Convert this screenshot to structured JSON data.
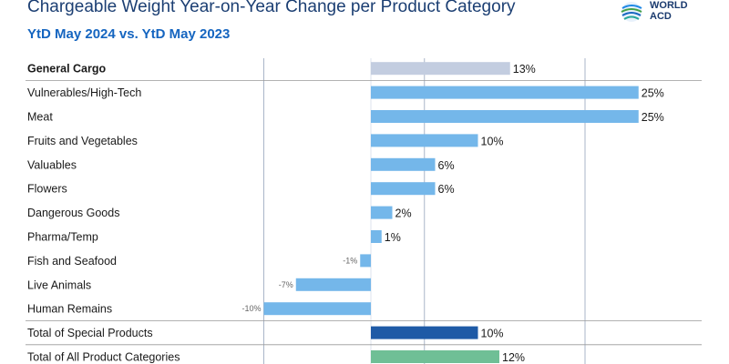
{
  "header": {
    "title": "Chargeable Weight Year-on-Year Change per Product Category",
    "subtitle": "YtD May 2024 vs. YtD May 2023"
  },
  "logo": {
    "line1": "WORLD",
    "line2": "ACD"
  },
  "colors": {
    "general": "#c3cde0",
    "special": "#74b7ea",
    "total_special": "#1e5aa6",
    "total_all": "#6fbf96",
    "grid": "#aab6c8",
    "separator": "#999999"
  },
  "chart_data": {
    "type": "bar",
    "orientation": "horizontal",
    "title": "Chargeable Weight Year-on-Year Change per Product Category",
    "subtitle": "YtD May 2024 vs. YtD May 2023",
    "unit": "%",
    "xlim": [
      -15,
      25
    ],
    "categories": [
      "General Cargo",
      "Vulnerables/High-Tech",
      "Meat",
      "Fruits and Vegetables",
      "Valuables",
      "Flowers",
      "Dangerous Goods",
      "Pharma/Temp",
      "Fish and Seafood",
      "Live Animals",
      "Human Remains",
      "Total of Special Products",
      "Total of All Product Categories"
    ],
    "values": [
      13,
      25,
      25,
      10,
      6,
      6,
      2,
      1,
      -1,
      -7,
      -10,
      10,
      12
    ],
    "labels": [
      "13%",
      "25%",
      "25%",
      "10%",
      "6%",
      "6%",
      "2%",
      "1%",
      "-1%",
      "-7%",
      "-10%",
      "10%",
      "12%"
    ],
    "groups": [
      "general",
      "special",
      "special",
      "special",
      "special",
      "special",
      "special",
      "special",
      "special",
      "special",
      "special",
      "total_special",
      "total_all"
    ]
  }
}
